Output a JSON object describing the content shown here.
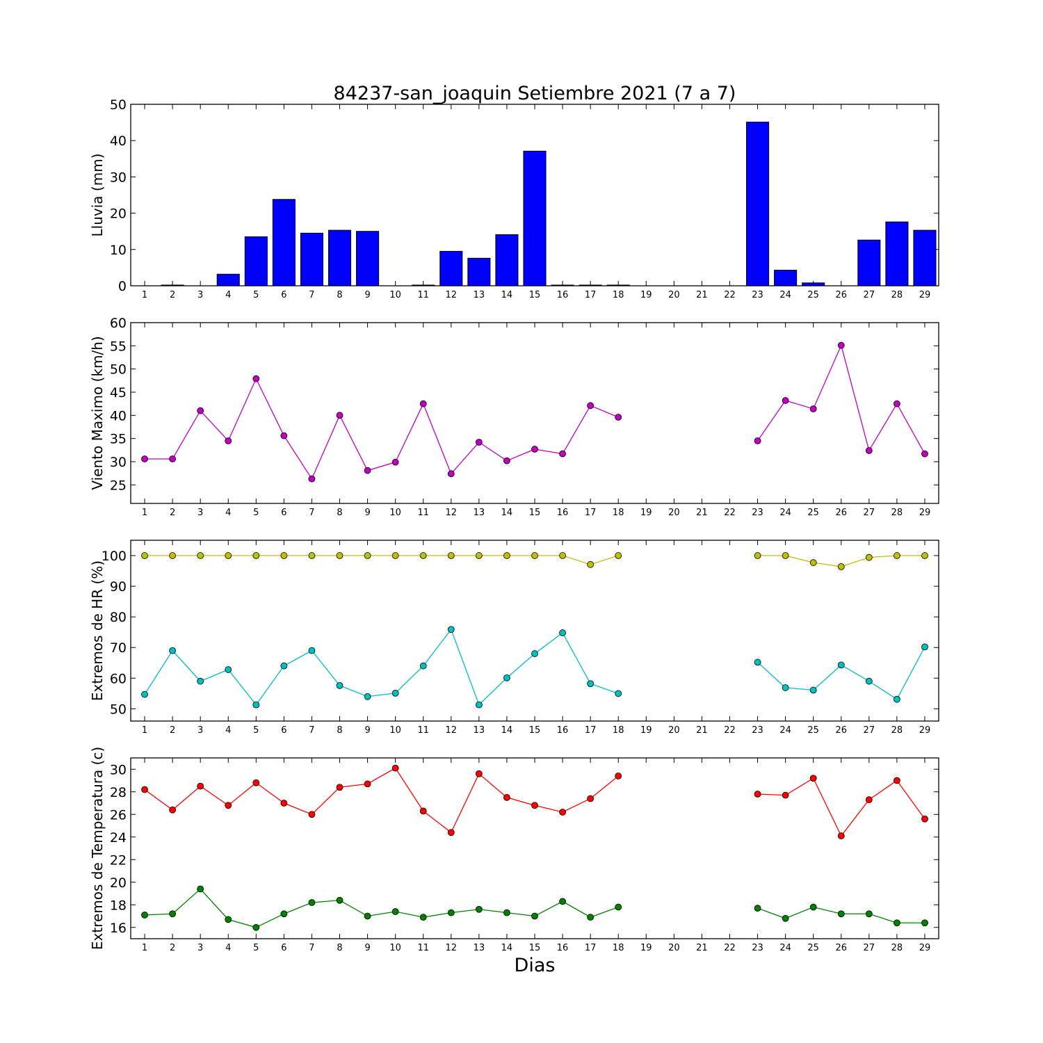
{
  "title": "84237-san_joaquin Setiembre 2021  (7 a 7)",
  "xlabel": "Dias",
  "x_ticks": [
    1,
    2,
    3,
    4,
    5,
    6,
    7,
    8,
    9,
    10,
    11,
    12,
    13,
    14,
    15,
    16,
    17,
    18,
    19,
    20,
    21,
    22,
    23,
    24,
    25,
    26,
    27,
    28,
    29
  ],
  "chart_data": [
    {
      "type": "bar",
      "ylabel": "Lluvia (mm)",
      "ylim": [
        0,
        50
      ],
      "yticks": [
        0,
        10,
        20,
        30,
        40,
        50
      ],
      "xlim": [
        0.5,
        29.5
      ],
      "categories": [
        1,
        2,
        3,
        4,
        5,
        6,
        7,
        8,
        9,
        10,
        11,
        12,
        13,
        14,
        15,
        16,
        17,
        18,
        19,
        20,
        21,
        22,
        23,
        24,
        25,
        26,
        27,
        28,
        29
      ],
      "series": [
        {
          "color": "#0000ff",
          "values": [
            0,
            0.2,
            0,
            3.2,
            13.5,
            23.8,
            14.5,
            15.3,
            15.0,
            0,
            0.2,
            9.5,
            7.6,
            14.1,
            37.1,
            0.2,
            0.2,
            0.2,
            0,
            0,
            0,
            0,
            45.1,
            4.3,
            0.8,
            0,
            12.6,
            17.6,
            15.3
          ]
        }
      ]
    },
    {
      "type": "line",
      "ylabel": "Viento Maximo (km/h)",
      "ylim": [
        21,
        60
      ],
      "yticks": [
        25,
        30,
        35,
        40,
        45,
        50,
        55,
        60
      ],
      "xlim": [
        0.5,
        29.5
      ],
      "x": [
        1,
        2,
        3,
        4,
        5,
        6,
        7,
        8,
        9,
        10,
        11,
        12,
        13,
        14,
        15,
        16,
        17,
        18,
        19,
        20,
        21,
        22,
        23,
        24,
        25,
        26,
        27,
        28,
        29
      ],
      "series": [
        {
          "color": "#bf00bf",
          "values": [
            30.6,
            30.6,
            41.0,
            34.5,
            47.9,
            35.6,
            26.3,
            40.0,
            28.1,
            29.9,
            42.5,
            27.4,
            34.2,
            30.2,
            32.7,
            31.7,
            42.1,
            39.6,
            null,
            null,
            null,
            null,
            34.5,
            43.2,
            41.4,
            55.1,
            32.4,
            42.5,
            31.7
          ]
        }
      ]
    },
    {
      "type": "line",
      "ylabel": "Extremos de HR (%)",
      "ylim": [
        46,
        105
      ],
      "yticks": [
        50,
        60,
        70,
        80,
        90,
        100
      ],
      "xlim": [
        0.5,
        29.5
      ],
      "x": [
        1,
        2,
        3,
        4,
        5,
        6,
        7,
        8,
        9,
        10,
        11,
        12,
        13,
        14,
        15,
        16,
        17,
        18,
        19,
        20,
        21,
        22,
        23,
        24,
        25,
        26,
        27,
        28,
        29
      ],
      "series": [
        {
          "color": "#bfbf00",
          "values": [
            100,
            100,
            100,
            100,
            100,
            100,
            100,
            100,
            100,
            100,
            100,
            100,
            100,
            100,
            100,
            100,
            97.1,
            100,
            null,
            null,
            null,
            null,
            100,
            100,
            97.7,
            96.4,
            99.4,
            100,
            100
          ]
        },
        {
          "color": "#00bfbf",
          "values": [
            54.7,
            69.0,
            59.0,
            62.8,
            51.3,
            64.0,
            69.0,
            57.6,
            54.0,
            55.1,
            64.0,
            75.9,
            51.3,
            60.1,
            68.0,
            74.8,
            58.2,
            55.0,
            null,
            null,
            null,
            null,
            65.2,
            56.9,
            56.1,
            64.3,
            59.0,
            53.1,
            70.2
          ]
        }
      ]
    },
    {
      "type": "line",
      "ylabel": "Extremos de Temperatura (c)",
      "ylim": [
        15,
        31
      ],
      "yticks": [
        16,
        18,
        20,
        22,
        24,
        26,
        28,
        30
      ],
      "xlim": [
        0.5,
        29.5
      ],
      "x": [
        1,
        2,
        3,
        4,
        5,
        6,
        7,
        8,
        9,
        10,
        11,
        12,
        13,
        14,
        15,
        16,
        17,
        18,
        19,
        20,
        21,
        22,
        23,
        24,
        25,
        26,
        27,
        28,
        29
      ],
      "series": [
        {
          "color": "#ff0000",
          "values": [
            28.2,
            26.4,
            28.5,
            26.8,
            28.8,
            27.0,
            26.0,
            28.4,
            28.7,
            30.1,
            26.3,
            24.4,
            29.6,
            27.5,
            26.8,
            26.2,
            27.4,
            29.4,
            null,
            null,
            null,
            null,
            27.8,
            27.7,
            29.2,
            24.1,
            27.3,
            29.0,
            25.6
          ]
        },
        {
          "color": "#008000",
          "values": [
            17.1,
            17.2,
            19.4,
            16.7,
            16.0,
            17.2,
            18.2,
            18.4,
            17.0,
            17.4,
            16.9,
            17.3,
            17.6,
            17.3,
            17.0,
            18.3,
            16.9,
            17.8,
            null,
            null,
            null,
            null,
            17.7,
            16.8,
            17.8,
            17.2,
            17.2,
            16.4,
            16.4
          ]
        }
      ]
    }
  ]
}
